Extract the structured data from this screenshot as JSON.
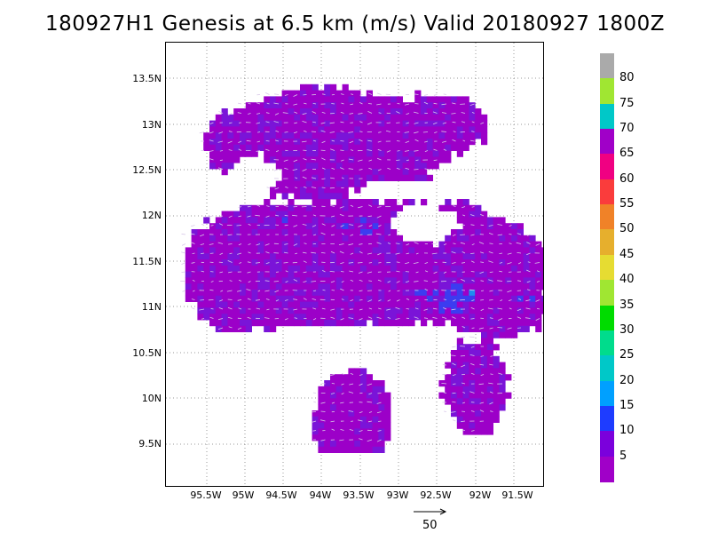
{
  "header": {
    "title": "180927H1 Genesis at 6.5 km (m/s) Valid 20180927  1800Z"
  },
  "map": {
    "lat_labels": [
      "13.5N",
      "13N",
      "12.5N",
      "12N",
      "11.5N",
      "11N",
      "10.5N",
      "10N",
      "9.5N"
    ],
    "lon_labels": [
      "95.5W",
      "95W",
      "94.5W",
      "94W",
      "93.5W",
      "93W",
      "92.5W",
      "92W",
      "91.5W"
    ],
    "grid_lines": "dotted",
    "field_colors": {
      "wind_lt5": "#9c00c8",
      "wind_5_10": "#7a14d8",
      "wind_10_15": "#3c3cf0",
      "wind_15_20": "#1e8cf0",
      "missing": "#ffffff"
    }
  },
  "colorbar": {
    "levels": [
      "5",
      "10",
      "15",
      "20",
      "25",
      "30",
      "35",
      "40",
      "45",
      "50",
      "55",
      "60",
      "65",
      "70",
      "75",
      "80"
    ],
    "colors": [
      "#a000c8",
      "#7b00dc",
      "#1e3cff",
      "#00a0ff",
      "#00c8c8",
      "#00dc8c",
      "#00dc00",
      "#a0e632",
      "#e6dc32",
      "#e6af2d",
      "#f08228",
      "#fa3c3c",
      "#f00082",
      "#a000c8",
      "#00c8c8",
      "#a0e632",
      "#aaaaaa"
    ]
  },
  "vector_reference": {
    "label": "50"
  }
}
